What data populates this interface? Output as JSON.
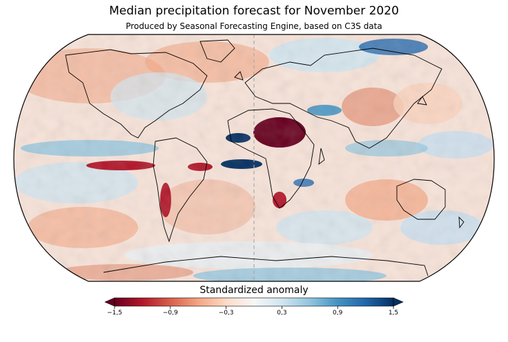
{
  "title": "Median precipitation forecast for November 2020",
  "subtitle": "Produced by Seasonal Forecasting Engine, based on C3S data",
  "colorbar": {
    "title": "Standardized anomaly",
    "min": -1.5,
    "max": 1.5,
    "ticks": [
      "−1,5",
      "−0,9",
      "−0,3",
      "0,3",
      "0,9",
      "1,5"
    ],
    "tick_values": [
      -1.5,
      -0.9,
      -0.3,
      0.3,
      0.9,
      1.5
    ],
    "colors": [
      "#67001f",
      "#b2182b",
      "#d6604d",
      "#f4a582",
      "#fddbc7",
      "#f7f7f7",
      "#d1e5f0",
      "#92c5de",
      "#4393c3",
      "#2166ac",
      "#053061"
    ],
    "extend": "both"
  },
  "map": {
    "projection": "robinson",
    "ocean_base": "#f6e9e3"
  }
}
